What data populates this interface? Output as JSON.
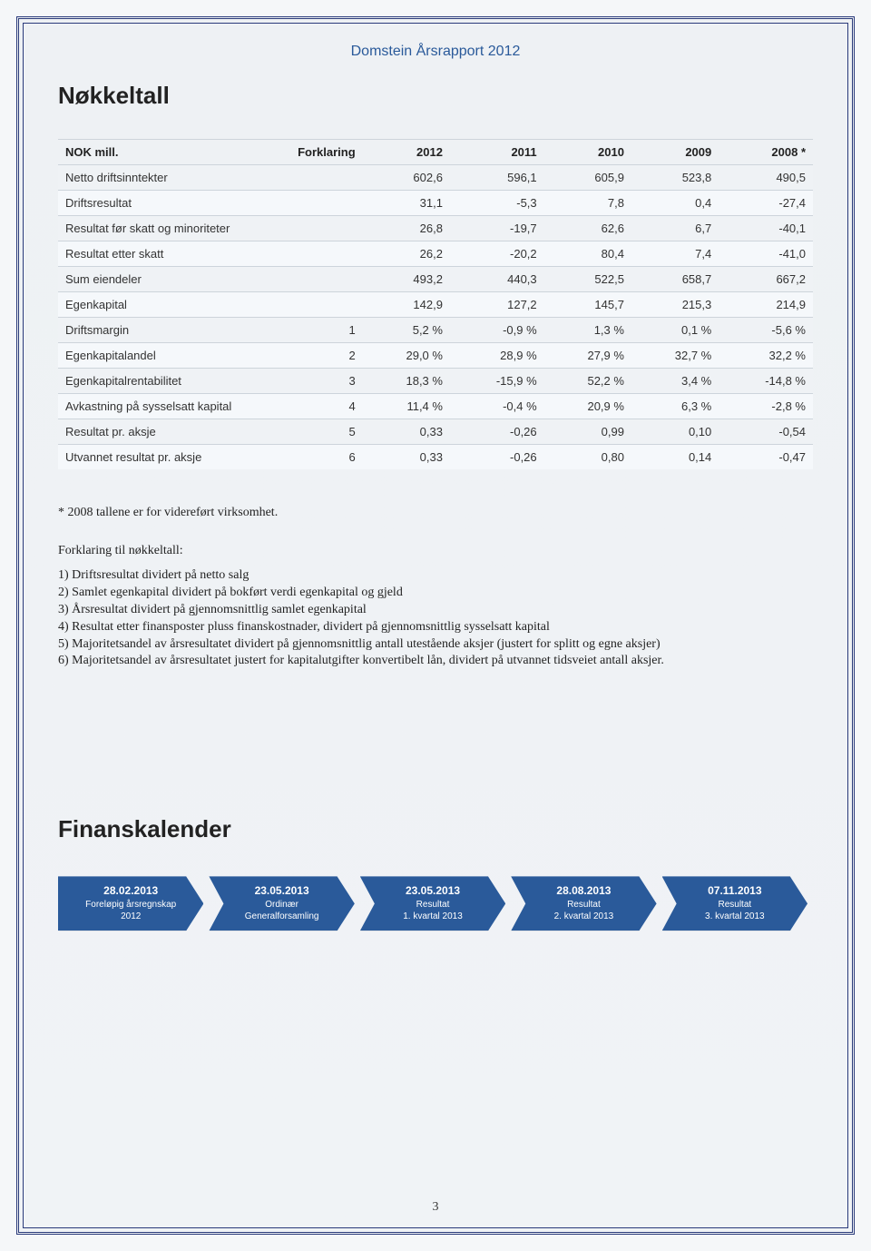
{
  "header": "Domstein Årsrapport 2012",
  "section1_title": "Nøkkeltall",
  "table": {
    "columns": [
      "NOK mill.",
      "Forklaring",
      "2012",
      "2011",
      "2010",
      "2009",
      "2008 *"
    ],
    "rows": [
      [
        "Netto driftsinntekter",
        "",
        "602,6",
        "596,1",
        "605,9",
        "523,8",
        "490,5"
      ],
      [
        "Driftsresultat",
        "",
        "31,1",
        "-5,3",
        "7,8",
        "0,4",
        "-27,4"
      ],
      [
        "Resultat før skatt og minoriteter",
        "",
        "26,8",
        "-19,7",
        "62,6",
        "6,7",
        "-40,1"
      ],
      [
        "Resultat etter skatt",
        "",
        "26,2",
        "-20,2",
        "80,4",
        "7,4",
        "-41,0"
      ],
      [
        "Sum eiendeler",
        "",
        "493,2",
        "440,3",
        "522,5",
        "658,7",
        "667,2"
      ],
      [
        "Egenkapital",
        "",
        "142,9",
        "127,2",
        "145,7",
        "215,3",
        "214,9"
      ],
      [
        "Driftsmargin",
        "1",
        "5,2 %",
        "-0,9 %",
        "1,3 %",
        "0,1 %",
        "-5,6 %"
      ],
      [
        "Egenkapitalandel",
        "2",
        "29,0 %",
        "28,9 %",
        "27,9 %",
        "32,7 %",
        "32,2 %"
      ],
      [
        "Egenkapitalrentabilitet",
        "3",
        "18,3 %",
        "-15,9 %",
        "52,2 %",
        "3,4 %",
        "-14,8 %"
      ],
      [
        "Avkastning på sysselsatt kapital",
        "4",
        "11,4 %",
        "-0,4 %",
        "20,9 %",
        "6,3 %",
        "-2,8 %"
      ],
      [
        "Resultat pr. aksje",
        "5",
        "0,33",
        "-0,26",
        "0,99",
        "0,10",
        "-0,54"
      ],
      [
        "Utvannet resultat pr. aksje",
        "6",
        "0,33",
        "-0,26",
        "0,80",
        "0,14",
        "-0,47"
      ]
    ]
  },
  "footnote": "* 2008 tallene er for videreført virksomhet.",
  "explain_title": "Forklaring til nøkkeltall:",
  "explain_items": [
    "1) Driftsresultat dividert på netto salg",
    "2) Samlet egenkapital dividert på bokført verdi egenkapital og gjeld",
    "3) Årsresultat dividert på gjennomsnittlig samlet egenkapital",
    "4) Resultat etter finansposter pluss finanskostnader, dividert på gjennomsnittlig sysselsatt kapital",
    "5) Majoritetsandel av årsresultatet dividert på gjennomsnittlig antall utestående aksjer (justert for splitt og egne aksjer)",
    "6) Majoritetsandel av årsresultatet justert for kapitalutgifter konvertibelt lån, dividert på utvannet tidsveiet antall aksjer."
  ],
  "section2_title": "Finanskalender",
  "calendar": [
    {
      "date": "28.02.2013",
      "line1": "Foreløpig årsregnskap",
      "line2": "2012"
    },
    {
      "date": "23.05.2013",
      "line1": "Ordinær",
      "line2": "Generalforsamling"
    },
    {
      "date": "23.05.2013",
      "line1": "Resultat",
      "line2": "1. kvartal 2013"
    },
    {
      "date": "28.08.2013",
      "line1": "Resultat",
      "line2": "2. kvartal 2013"
    },
    {
      "date": "07.11.2013",
      "line1": "Resultat",
      "line2": "3. kvartal 2013"
    }
  ],
  "page_number": "3",
  "colors": {
    "border": "#2a3a7a",
    "header_text": "#2a5a9a",
    "arrow_bg": "#2a5a9a",
    "row_odd": "#eff2f5",
    "row_even": "#f5f8fb"
  }
}
